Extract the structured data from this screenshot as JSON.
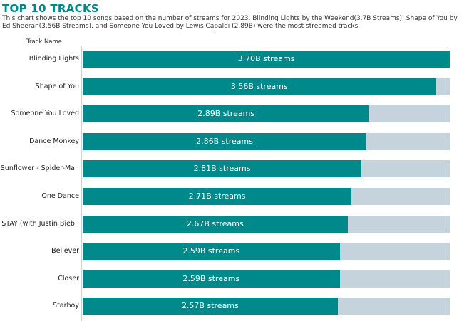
{
  "header": {
    "title": "TOP 10 TRACKS",
    "subtitle": "This chart shows the top 10 songs based on the number of streams for 2023. Blinding Lights by the Weekend(3.7B Streams), Shape of You by Ed Sheeran(3.56B Streams), and Someone You Loved by Lewis Capaldi (2.89B) were the most streamed tracks."
  },
  "colors": {
    "bar": "#00898a",
    "background_bar": "#c5d4dc",
    "title": "#00898a"
  },
  "chart_data": {
    "type": "bar",
    "orientation": "horizontal",
    "title": "TOP 10 TRACKS",
    "ylabel": "Track Name",
    "xlabel": "",
    "xlim": [
      0,
      3.7
    ],
    "unit": "B streams",
    "categories": [
      "Blinding Lights",
      "Shape of You",
      "Someone You Loved",
      "Dance Monkey",
      "Sunflower - Spider-Ma..",
      "One Dance",
      "STAY (with Justin Bieb..",
      "Believer",
      "Closer",
      "Starboy"
    ],
    "values": [
      3.7,
      3.56,
      2.89,
      2.86,
      2.81,
      2.71,
      2.67,
      2.59,
      2.59,
      2.57
    ],
    "data_labels": [
      "3.70B streams",
      "3.56B streams",
      "2.89B streams",
      "2.86B streams",
      "2.81B streams",
      "2.71B streams",
      "2.67B streams",
      "2.59B streams",
      "2.59B streams",
      "2.57B streams"
    ]
  }
}
